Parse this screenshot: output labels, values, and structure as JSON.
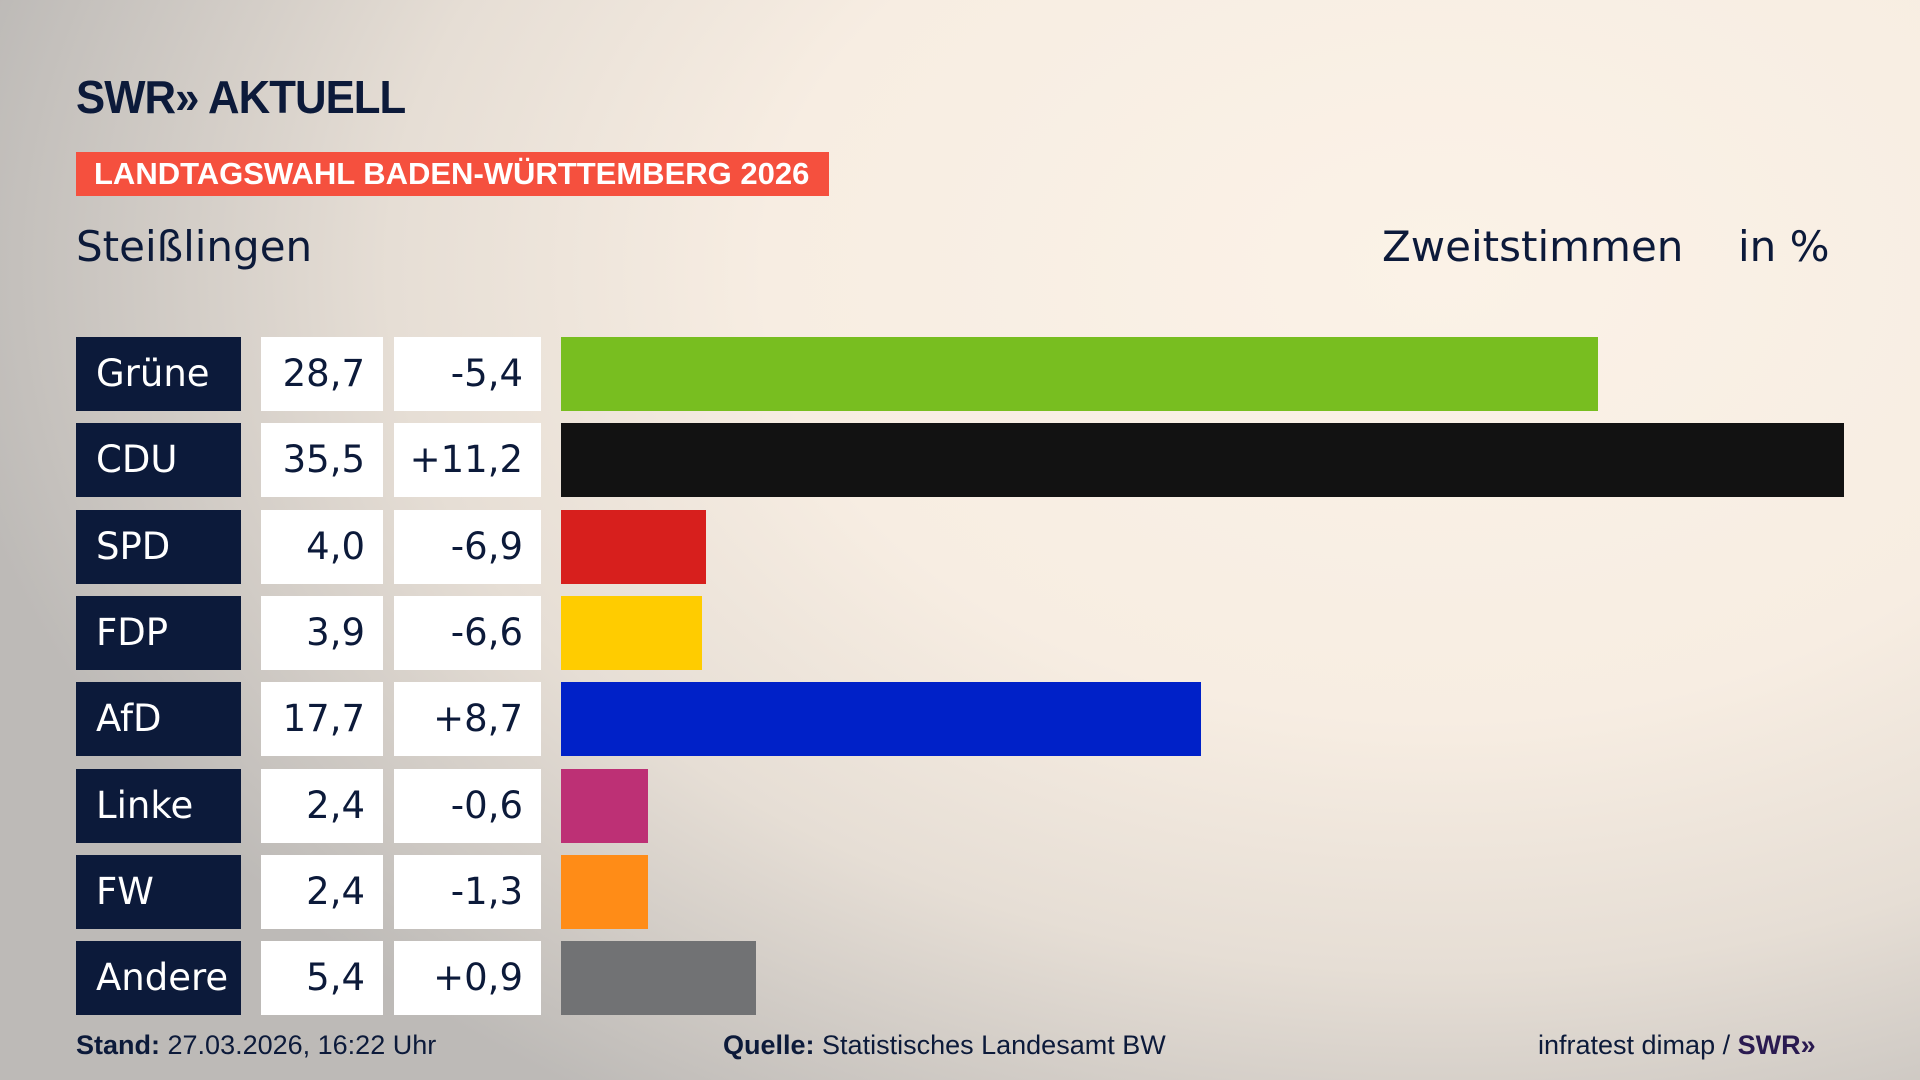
{
  "header": {
    "logo": "SWR» AKTUELL",
    "banner": "LANDTAGSWAHL BADEN-WÜRTTEMBERG 2026",
    "place": "Steißlingen",
    "metric": "Zweitstimmen",
    "unit": "in %"
  },
  "chart_data": {
    "type": "bar",
    "orientation": "horizontal",
    "xlim": [
      0,
      35.5
    ],
    "categories": [
      "Grüne",
      "CDU",
      "SPD",
      "FDP",
      "AfD",
      "Linke",
      "FW",
      "Andere"
    ],
    "values": [
      28.7,
      35.5,
      4.0,
      3.9,
      17.7,
      2.4,
      2.4,
      5.4
    ],
    "value_labels": [
      "28,7",
      "35,5",
      "4,0",
      "3,9",
      "17,7",
      "2,4",
      "2,4",
      "5,4"
    ],
    "diff_labels": [
      "-5,4",
      "+11,2",
      "-6,9",
      "-6,6",
      "+8,7",
      "-0,6",
      "-1,3",
      "+0,9"
    ],
    "colors": [
      "#78be20",
      "#121212",
      "#d71f1d",
      "#ffcc00",
      "#0021c8",
      "#bd3075",
      "#ff8c17",
      "#717274"
    ]
  },
  "footer": {
    "stand_label": "Stand:",
    "stand_value": "27.03.2026, 16:22 Uhr",
    "source_label": "Quelle:",
    "source_value": "Statistisches Landesamt BW",
    "credit": "infratest dimap /",
    "credit_logo": "SWR»"
  }
}
